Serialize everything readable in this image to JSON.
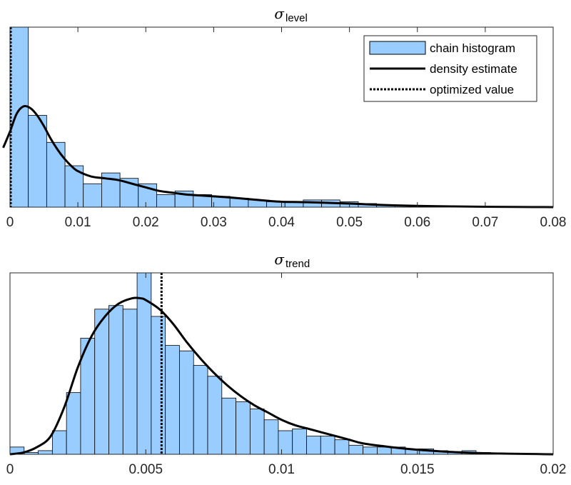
{
  "chart_data": [
    {
      "type": "bar",
      "title_symbol": "σ",
      "title_subscript": "level",
      "xlim": [
        0,
        0.08
      ],
      "ylim": [
        0,
        1.0
      ],
      "xticks": [
        0,
        0.01,
        0.02,
        0.03,
        0.04,
        0.05,
        0.06,
        0.07,
        0.08
      ],
      "xtick_labels": [
        "0",
        "0.01",
        "0.02",
        "0.03",
        "0.04",
        "0.05",
        "0.06",
        "0.07",
        "0.08"
      ],
      "bin_width": 0.0027,
      "bins": [
        {
          "x0": 0.0,
          "value": 1.0
        },
        {
          "x0": 0.0027,
          "value": 0.51
        },
        {
          "x0": 0.0054,
          "value": 0.36
        },
        {
          "x0": 0.0081,
          "value": 0.23
        },
        {
          "x0": 0.0108,
          "value": 0.13
        },
        {
          "x0": 0.0135,
          "value": 0.19
        },
        {
          "x0": 0.0162,
          "value": 0.16
        },
        {
          "x0": 0.0189,
          "value": 0.13
        },
        {
          "x0": 0.0216,
          "value": 0.07
        },
        {
          "x0": 0.0243,
          "value": 0.09
        },
        {
          "x0": 0.027,
          "value": 0.07
        },
        {
          "x0": 0.0297,
          "value": 0.06
        },
        {
          "x0": 0.0324,
          "value": 0.05
        },
        {
          "x0": 0.0351,
          "value": 0.04
        },
        {
          "x0": 0.0378,
          "value": 0.03
        },
        {
          "x0": 0.0405,
          "value": 0.03
        },
        {
          "x0": 0.0432,
          "value": 0.04
        },
        {
          "x0": 0.0459,
          "value": 0.04
        },
        {
          "x0": 0.0486,
          "value": 0.03
        },
        {
          "x0": 0.0513,
          "value": 0.02
        },
        {
          "x0": 0.054,
          "value": 0.01
        },
        {
          "x0": 0.0567,
          "value": 0.01
        },
        {
          "x0": 0.0594,
          "value": 0.005
        },
        {
          "x0": 0.0621,
          "value": 0.005
        },
        {
          "x0": 0.0648,
          "value": 0.004
        },
        {
          "x0": 0.0675,
          "value": 0.003
        },
        {
          "x0": 0.0702,
          "value": 0.003
        },
        {
          "x0": 0.0729,
          "value": 0.002
        }
      ],
      "density": {
        "x": [
          -0.001,
          0.0,
          0.001,
          0.002,
          0.003,
          0.004,
          0.005,
          0.006,
          0.007,
          0.008,
          0.009,
          0.01,
          0.012,
          0.014,
          0.016,
          0.018,
          0.02,
          0.022,
          0.024,
          0.026,
          0.028,
          0.03,
          0.032,
          0.035,
          0.038,
          0.04,
          0.043,
          0.046,
          0.05,
          0.055,
          0.06,
          0.065,
          0.07,
          0.075,
          0.08
        ],
        "y": [
          0.33,
          0.42,
          0.52,
          0.56,
          0.55,
          0.51,
          0.45,
          0.38,
          0.32,
          0.27,
          0.23,
          0.2,
          0.17,
          0.16,
          0.15,
          0.13,
          0.11,
          0.09,
          0.08,
          0.07,
          0.065,
          0.06,
          0.055,
          0.045,
          0.035,
          0.03,
          0.028,
          0.025,
          0.02,
          0.012,
          0.007,
          0.004,
          0.002,
          0.001,
          0.0
        ]
      },
      "optimized_value": 0.0001,
      "legend": {
        "placement": "top-right",
        "entries": [
          "chain histogram",
          "density estimate",
          "optimized value"
        ]
      },
      "colors": {
        "bar_fill": "#99CCFF",
        "bar_edge": "#000000",
        "density": "#000000",
        "optimized": "#000000"
      },
      "grid": false
    },
    {
      "type": "bar",
      "title_symbol": "σ",
      "title_subscript": "trend",
      "xlim": [
        0,
        0.02
      ],
      "ylim": [
        0,
        1.0
      ],
      "xticks": [
        0,
        0.005,
        0.01,
        0.015,
        0.02
      ],
      "xtick_labels": [
        "0",
        "0.005",
        "0.01",
        "0.015",
        "0.02"
      ],
      "bin_width": 0.00052,
      "bins": [
        {
          "x0": 0.0,
          "value": 0.04
        },
        {
          "x0": 0.00052,
          "value": 0.01
        },
        {
          "x0": 0.00104,
          "value": 0.02
        },
        {
          "x0": 0.00156,
          "value": 0.13
        },
        {
          "x0": 0.00208,
          "value": 0.34
        },
        {
          "x0": 0.0026,
          "value": 0.64
        },
        {
          "x0": 0.00312,
          "value": 0.8
        },
        {
          "x0": 0.00364,
          "value": 0.82
        },
        {
          "x0": 0.00416,
          "value": 0.8
        },
        {
          "x0": 0.00468,
          "value": 1.0
        },
        {
          "x0": 0.0052,
          "value": 0.76
        },
        {
          "x0": 0.00572,
          "value": 0.6
        },
        {
          "x0": 0.00624,
          "value": 0.57
        },
        {
          "x0": 0.00676,
          "value": 0.49
        },
        {
          "x0": 0.00728,
          "value": 0.43
        },
        {
          "x0": 0.0078,
          "value": 0.31
        },
        {
          "x0": 0.00832,
          "value": 0.29
        },
        {
          "x0": 0.00884,
          "value": 0.25
        },
        {
          "x0": 0.00936,
          "value": 0.19
        },
        {
          "x0": 0.00988,
          "value": 0.13
        },
        {
          "x0": 0.0104,
          "value": 0.14
        },
        {
          "x0": 0.01092,
          "value": 0.1
        },
        {
          "x0": 0.01144,
          "value": 0.1
        },
        {
          "x0": 0.01196,
          "value": 0.08
        },
        {
          "x0": 0.01248,
          "value": 0.05
        },
        {
          "x0": 0.013,
          "value": 0.04
        },
        {
          "x0": 0.01352,
          "value": 0.04
        },
        {
          "x0": 0.01404,
          "value": 0.04
        },
        {
          "x0": 0.01456,
          "value": 0.03
        },
        {
          "x0": 0.01508,
          "value": 0.03
        },
        {
          "x0": 0.0156,
          "value": 0.02
        },
        {
          "x0": 0.01612,
          "value": 0.015
        },
        {
          "x0": 0.01664,
          "value": 0.02
        },
        {
          "x0": 0.01716,
          "value": 0.01
        },
        {
          "x0": 0.01768,
          "value": 0.008
        },
        {
          "x0": 0.0182,
          "value": 0.005
        },
        {
          "x0": 0.01872,
          "value": 0.004
        },
        {
          "x0": 0.01924,
          "value": 0.003
        }
      ],
      "density": {
        "x": [
          0.0,
          0.0005,
          0.001,
          0.0015,
          0.002,
          0.0025,
          0.003,
          0.0035,
          0.004,
          0.0045,
          0.0048,
          0.005,
          0.0055,
          0.006,
          0.0065,
          0.007,
          0.0075,
          0.008,
          0.0085,
          0.009,
          0.0095,
          0.01,
          0.0105,
          0.011,
          0.0115,
          0.012,
          0.0125,
          0.013,
          0.014,
          0.015,
          0.016,
          0.017,
          0.018,
          0.019,
          0.02
        ],
        "y": [
          0.0,
          0.01,
          0.04,
          0.1,
          0.26,
          0.48,
          0.65,
          0.76,
          0.83,
          0.86,
          0.86,
          0.85,
          0.8,
          0.72,
          0.62,
          0.53,
          0.45,
          0.38,
          0.32,
          0.27,
          0.23,
          0.19,
          0.16,
          0.14,
          0.12,
          0.1,
          0.08,
          0.06,
          0.04,
          0.025,
          0.015,
          0.008,
          0.004,
          0.002,
          0.0
        ]
      },
      "optimized_value": 0.00558,
      "colors": {
        "bar_fill": "#99CCFF",
        "bar_edge": "#000000",
        "density": "#000000",
        "optimized": "#000000"
      },
      "grid": false
    }
  ]
}
